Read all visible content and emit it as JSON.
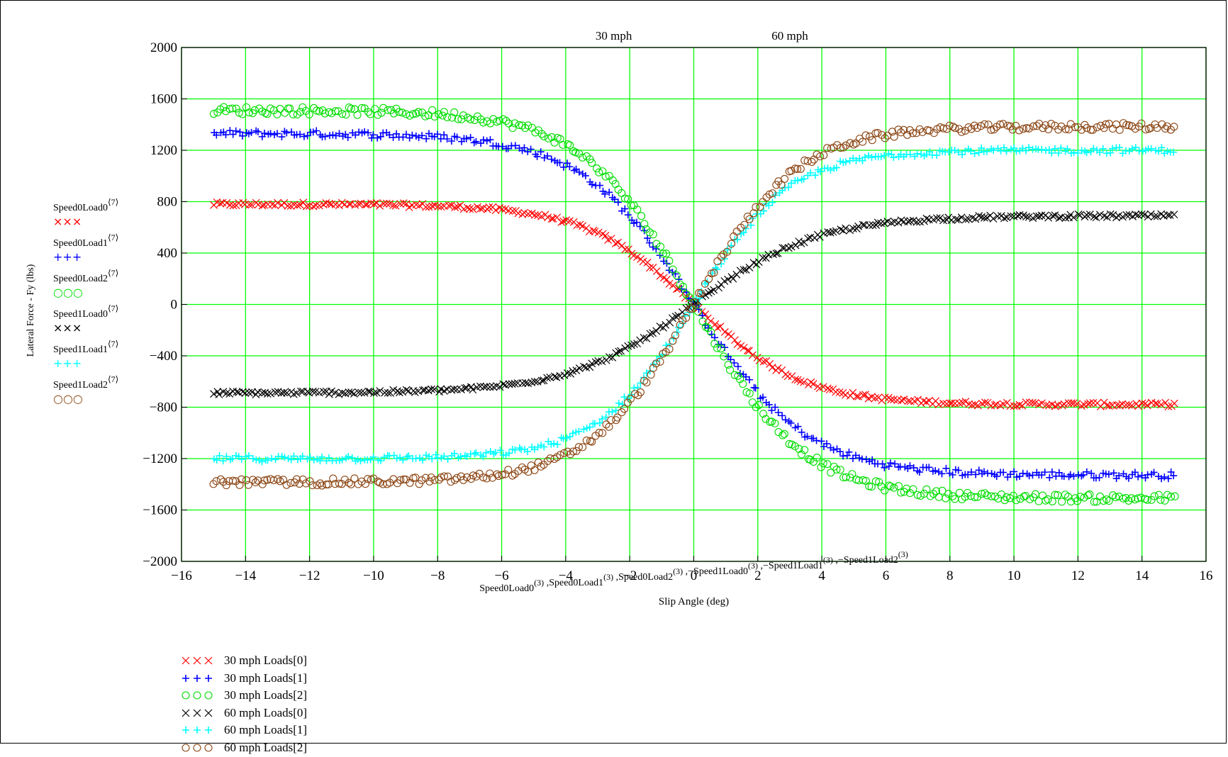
{
  "chart_data": {
    "type": "scatter",
    "xlabel_expression": [
      "Speed0Load0",
      "(3)",
      "Speed0Load1",
      "(3)",
      "Speed0Load2",
      "(3)",
      "−Speed1Load0",
      "(3)",
      "−Speed1Load1",
      "(3)",
      "−Speed1Load2",
      "(3)"
    ],
    "xlabel": "Slip Angle (deg)",
    "ylabel": "Lateral Force - Fy (lbs)",
    "xlim": [
      -16,
      16
    ],
    "ylim": [
      -2000,
      2000
    ],
    "x_ticks": [
      "−16",
      "−14",
      "−12",
      "−10",
      "−8",
      "−6",
      "−4",
      "−2",
      "0",
      "2",
      "4",
      "6",
      "8",
      "10",
      "12",
      "14",
      "16"
    ],
    "y_ticks": [
      "2000",
      "1600",
      "1200",
      "800",
      "400",
      "0",
      "−400",
      "−800",
      "−1200",
      "−1600",
      "−2000"
    ],
    "grid": true,
    "top_annotations": [
      {
        "text": "30 mph",
        "x": -2.5
      },
      {
        "text": "60 mph",
        "x": 3.0
      }
    ],
    "y_legend": [
      {
        "name": "Speed0Load0",
        "superscript": "⟨7⟩",
        "marker": "×××",
        "color": "#ff0000"
      },
      {
        "name": "Speed0Load1",
        "superscript": "⟨7⟩",
        "marker": "+++",
        "color": "#0000ff"
      },
      {
        "name": "Speed0Load2",
        "superscript": "⟨7⟩",
        "marker": "○○○",
        "color": "#00dd00"
      },
      {
        "name": "Speed1Load0",
        "superscript": "⟨7⟩",
        "marker": "×××",
        "color": "#000000"
      },
      {
        "name": "Speed1Load1",
        "superscript": "⟨7⟩",
        "marker": "+++",
        "color": "#00ffff"
      },
      {
        "name": "Speed1Load2",
        "superscript": "⟨7⟩",
        "marker": "○○○",
        "color": "#8b4513"
      }
    ],
    "series": [
      {
        "name": "30 mph Loads[0]",
        "marker": "x",
        "color": "#ff0000",
        "x_range": [
          -15,
          15
        ],
        "plateau": -780,
        "slope": -230
      },
      {
        "name": "30 mph Loads[1]",
        "marker": "+",
        "color": "#0000ff",
        "x_range": [
          -15,
          15
        ],
        "plateau": -1330,
        "slope": -380
      },
      {
        "name": "30 mph Loads[2]",
        "marker": "o",
        "color": "#00dd00",
        "x_range": [
          -15,
          15
        ],
        "plateau": -1510,
        "slope": -440
      },
      {
        "name": "60 mph Loads[0]",
        "marker": "x",
        "color": "#000000",
        "x_range": [
          -15,
          15
        ],
        "plateau": 690,
        "slope": 180
      },
      {
        "name": "60 mph Loads[1]",
        "marker": "+",
        "color": "#00ffff",
        "x_range": [
          -15,
          15
        ],
        "plateau": 1200,
        "slope": 400
      },
      {
        "name": "60 mph Loads[2]",
        "marker": "o",
        "color": "#8b4513",
        "x_range": [
          -15,
          15
        ],
        "plateau": 1385,
        "slope": 430
      }
    ]
  },
  "legend": [
    {
      "label": "30 mph Loads[0]",
      "marker": "x",
      "color": "#ff0000"
    },
    {
      "label": "30 mph Loads[1]",
      "marker": "+",
      "color": "#0000ff"
    },
    {
      "label": "30 mph Loads[2]",
      "marker": "o",
      "color": "#00dd00"
    },
    {
      "label": "60 mph Loads[0]",
      "marker": "x",
      "color": "#000000"
    },
    {
      "label": "60 mph Loads[1]",
      "marker": "+",
      "color": "#00ffff"
    },
    {
      "label": "60 mph Loads[2]",
      "marker": "o",
      "color": "#8b4513"
    }
  ],
  "colors": {
    "grid": "#00ff00",
    "axis": "#000000",
    "background": "#ffffff"
  }
}
